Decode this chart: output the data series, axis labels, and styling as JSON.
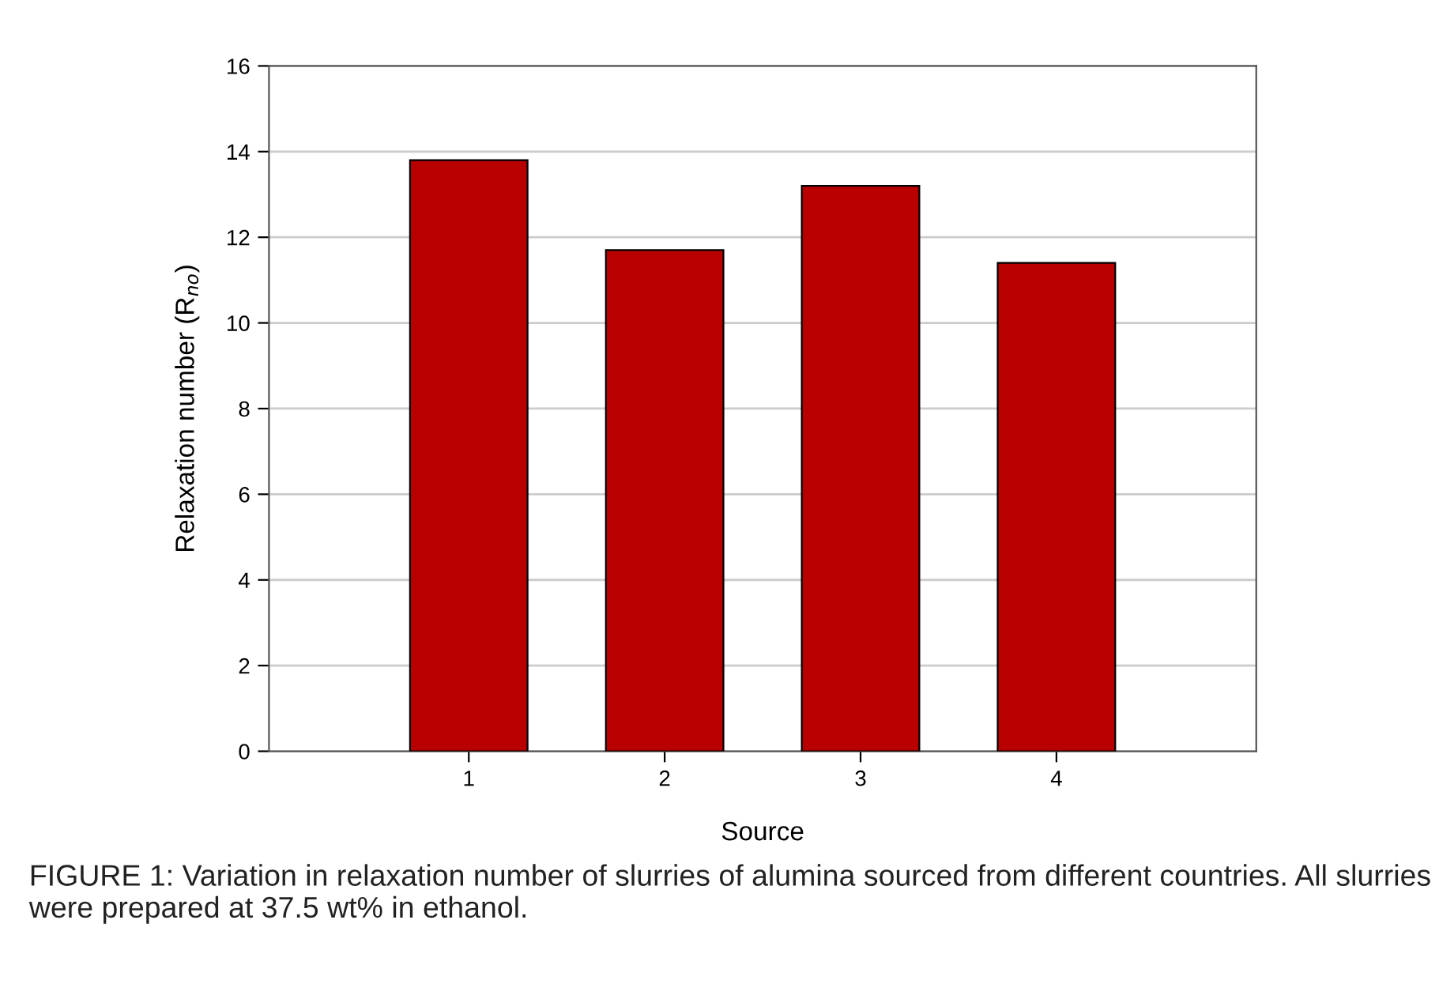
{
  "chart_data": {
    "type": "bar",
    "categories": [
      "1",
      "2",
      "3",
      "4"
    ],
    "values": [
      13.8,
      11.7,
      13.2,
      11.4
    ],
    "color": "#b80000",
    "xlabel": "Source",
    "ylabel": "Relaxation number (R$_{no}$)",
    "ylim": [
      0,
      16
    ],
    "yticks": [
      0,
      2,
      4,
      6,
      8,
      10,
      12,
      14,
      16
    ],
    "grid": "y",
    "annotations": [
      "FIGURE 1: Variation in relaxation number of slurries of alumina sourced from different countries. All slurries were prepared at 37.5 wt% in ethanol."
    ]
  }
}
